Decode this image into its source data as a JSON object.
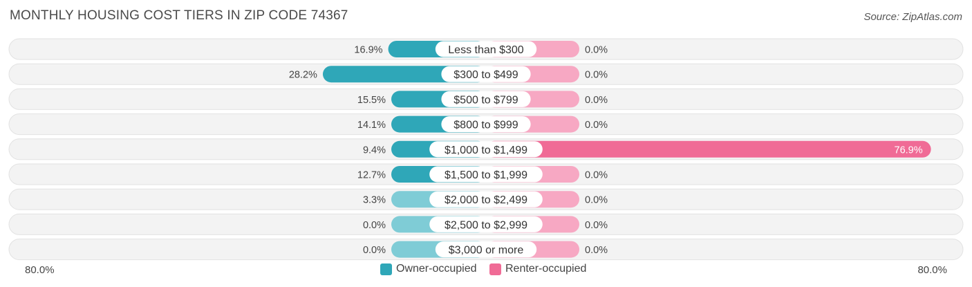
{
  "title": "MONTHLY HOUSING COST TIERS IN ZIP CODE 74367",
  "source": "Source: ZipAtlas.com",
  "axis": {
    "left_label": "80.0%",
    "right_label": "80.0%"
  },
  "colors": {
    "owner": "#2fa7b8",
    "owner_light": "#7fccd6",
    "renter": "#f06b96",
    "renter_light": "#f7a8c3",
    "row_bg": "#f1f1f1"
  },
  "chart_data": {
    "type": "bar",
    "orientation": "horizontal-diverging",
    "xlim": [
      -80,
      80
    ],
    "categories": [
      "Less than $300",
      "$300 to $499",
      "$500 to $799",
      "$800 to $999",
      "$1,000 to $1,499",
      "$1,500 to $1,999",
      "$2,000 to $2,499",
      "$2,500 to $2,999",
      "$3,000 or more"
    ],
    "series": [
      {
        "name": "Owner-occupied",
        "values": [
          16.9,
          28.2,
          15.5,
          14.1,
          9.4,
          12.7,
          3.3,
          0.0,
          0.0
        ],
        "labels": [
          "16.9%",
          "28.2%",
          "15.5%",
          "14.1%",
          "9.4%",
          "12.7%",
          "3.3%",
          "0.0%",
          "0.0%"
        ]
      },
      {
        "name": "Renter-occupied",
        "values": [
          0.0,
          0.0,
          0.0,
          0.0,
          76.9,
          0.0,
          0.0,
          0.0,
          0.0
        ],
        "labels": [
          "0.0%",
          "0.0%",
          "0.0%",
          "0.0%",
          "76.9%",
          "0.0%",
          "0.0%",
          "0.0%",
          "0.0%"
        ]
      }
    ],
    "legend_position": "bottom-center"
  }
}
